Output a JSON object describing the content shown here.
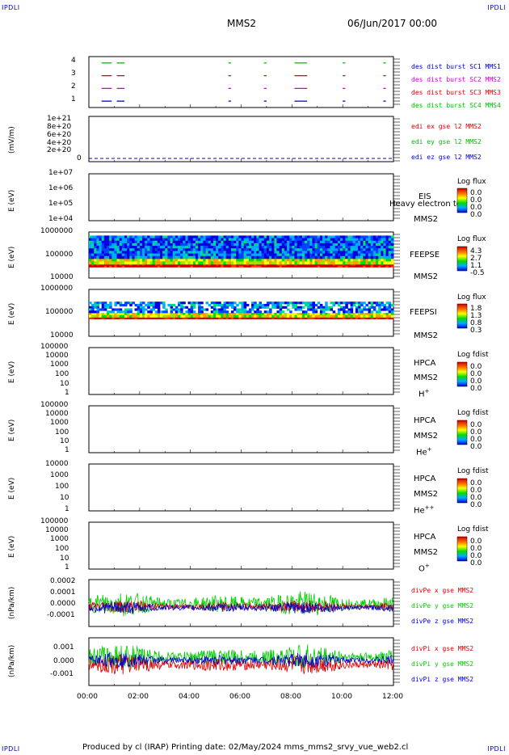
{
  "page": {
    "corner_label": "IPDLI",
    "spacecraft": "MMS2",
    "datetime": "06/Jun/2017 00:00",
    "footer": "Produced by cl (IRAP)   Printing date: 02/May/2024   mms_mms2_srvy_vue_web2.cl"
  },
  "colors": {
    "mms1": "#0000cc",
    "mms2": "#cc00cc",
    "mms3": "#dd0000",
    "mms4": "#00bb00",
    "x": "#dd0000",
    "y": "#00cc00",
    "z": "#0000cc"
  },
  "panels": {
    "burst": {
      "yticks": [
        "4",
        "3",
        "2",
        "1"
      ],
      "legend": [
        "des dist burst SC1 MMS1",
        "des dist burst SC2 MMS2",
        "des dist burst SC3 MMS3",
        "des dist burst SC4 MMS4"
      ]
    },
    "edi": {
      "ylabel": "(mV/m)",
      "yticks": [
        "1e+21",
        "8e+20",
        "6e+20",
        "4e+20",
        "2e+20",
        "0"
      ],
      "legend": [
        "edi ex gse l2 MMS2",
        "edi ey gse l2 MMS2",
        "edi ez gse l2 MMS2"
      ]
    },
    "eis": {
      "ylabel": "E (eV)",
      "yticks": [
        "1e+07",
        "1e+06",
        "1e+05",
        "1e+04"
      ],
      "instrument": "EIS",
      "instrument_extra": "Heavy electron to",
      "sc": "MMS2",
      "cb_title": "Log flux",
      "cb_values": [
        "0.0",
        "0.0",
        "0.0",
        "0.0"
      ]
    },
    "feepse": {
      "ylabel": "E (eV)",
      "yticks": [
        "1000000",
        "100000",
        "10000"
      ],
      "instrument": "FEEPSE",
      "sc": "MMS2",
      "cb_title": "Log flux",
      "cb_values": [
        "4.3",
        "2.7",
        "1.1",
        "-0.5"
      ]
    },
    "feepsi": {
      "ylabel": "E (eV)",
      "yticks": [
        "1000000",
        "100000",
        "10000"
      ],
      "instrument": "FEEPSI",
      "sc": "MMS2",
      "cb_title": "Log flux",
      "cb_values": [
        "1.8",
        "1.3",
        "0.8",
        "0.3"
      ]
    },
    "hpca_h": {
      "ylabel": "E (eV)",
      "yticks": [
        "100000",
        "10000",
        "1000",
        "100",
        "10",
        "1"
      ],
      "instrument": "HPCA",
      "sc": "MMS2",
      "species": "H",
      "charge": "+",
      "cb_title": "Log fdist",
      "cb_values": [
        "0.0",
        "0.0",
        "0.0",
        "0.0"
      ]
    },
    "hpca_he": {
      "ylabel": "E (eV)",
      "yticks": [
        "100000",
        "10000",
        "1000",
        "100",
        "10",
        "1"
      ],
      "instrument": "HPCA",
      "sc": "MMS2",
      "species": "He",
      "charge": "+",
      "cb_title": "Log fdist",
      "cb_values": [
        "0.0",
        "0.0",
        "0.0",
        "0.0"
      ]
    },
    "hpca_hepp": {
      "ylabel": "E (eV)",
      "yticks": [
        "10000",
        "1000",
        "100",
        "10",
        "1"
      ],
      "instrument": "HPCA",
      "sc": "MMS2",
      "species": "He",
      "charge": "++",
      "cb_title": "Log fdist",
      "cb_values": [
        "0.0",
        "0.0",
        "0.0",
        "0.0"
      ]
    },
    "hpca_o": {
      "ylabel": "E (eV)",
      "yticks": [
        "100000",
        "10000",
        "1000",
        "100",
        "10",
        "1"
      ],
      "instrument": "HPCA",
      "sc": "MMS2",
      "species": "O",
      "charge": "+",
      "cb_title": "Log fdist",
      "cb_values": [
        "0.0",
        "0.0",
        "0.0",
        "0.0"
      ]
    },
    "divpe": {
      "ylabel": "(nPa/km)",
      "yticks": [
        "0.0002",
        "0.0001",
        "0.0000",
        "-0.0001"
      ],
      "legend": [
        "divPe x gse MMS2",
        "divPe y gse MMS2",
        "divPe z gse MMS2"
      ]
    },
    "divpi": {
      "ylabel": "(nPa/km)",
      "yticks": [
        "0.001",
        "0.000",
        "-0.001"
      ],
      "legend": [
        "divPi x gse MMS2",
        "divPi y gse MMS2",
        "divPi z gse MMS2"
      ]
    }
  },
  "xticks": [
    "00:00",
    "02:00",
    "04:00",
    "06:00",
    "08:00",
    "10:00",
    "12:00"
  ],
  "chart_data": [
    {
      "type": "scatter",
      "name_hint": "burst",
      "x_range_hours": [
        0,
        12
      ],
      "ylim": [
        0.5,
        4.5
      ],
      "series": [
        {
          "name": "des dist burst SC1 MMS1",
          "y": 1,
          "intervals": [
            [
              0.5,
              0.9
            ],
            [
              1.1,
              1.4
            ],
            [
              5.5,
              5.6
            ],
            [
              6.9,
              7.0
            ],
            [
              8.1,
              8.6
            ],
            [
              10.0,
              10.1
            ],
            [
              11.6,
              11.7
            ]
          ]
        },
        {
          "name": "des dist burst SC2 MMS2",
          "y": 2,
          "intervals": [
            [
              0.5,
              0.9
            ],
            [
              1.1,
              1.4
            ],
            [
              5.5,
              5.6
            ],
            [
              6.9,
              7.0
            ],
            [
              8.1,
              8.6
            ],
            [
              10.0,
              10.1
            ],
            [
              11.6,
              11.7
            ]
          ]
        },
        {
          "name": "des dist burst SC3 MMS3",
          "y": 3,
          "intervals": [
            [
              0.5,
              0.9
            ],
            [
              1.1,
              1.4
            ],
            [
              5.5,
              5.6
            ],
            [
              6.9,
              7.0
            ],
            [
              8.1,
              8.6
            ],
            [
              10.0,
              10.1
            ],
            [
              11.6,
              11.7
            ]
          ]
        },
        {
          "name": "des dist burst SC4 MMS4",
          "y": 4,
          "intervals": [
            [
              0.5,
              0.9
            ],
            [
              1.1,
              1.4
            ],
            [
              5.5,
              5.6
            ],
            [
              6.9,
              7.0
            ],
            [
              8.1,
              8.6
            ],
            [
              10.0,
              10.1
            ],
            [
              11.6,
              11.7
            ]
          ]
        }
      ]
    },
    {
      "type": "line",
      "name_hint": "edi",
      "ylabel": "(mV/m)",
      "ylim": [
        0,
        1.1e+21
      ],
      "x_range_hours": [
        0,
        12
      ],
      "series": [
        {
          "name": "edi ez gse l2 MMS2",
          "x": [
            0,
            12
          ],
          "y": [
            0,
            0
          ]
        }
      ]
    },
    {
      "type": "heatmap",
      "name_hint": "feepse",
      "ylabel": "E (eV)",
      "ylog": true,
      "ylim": [
        10000,
        1000000
      ],
      "x_range_hours": [
        0,
        12
      ],
      "colorbar": [
        -0.5,
        4.3
      ],
      "bands": [
        {
          "e_low": 30000,
          "e_high": 40000,
          "level": 4.3
        },
        {
          "e_low": 40000,
          "e_high": 70000,
          "level": 2.5
        },
        {
          "e_low": 70000,
          "e_high": 700000,
          "level": 0.3
        }
      ]
    },
    {
      "type": "heatmap",
      "name_hint": "feepsi",
      "ylabel": "E (eV)",
      "ylog": true,
      "ylim": [
        10000,
        1000000
      ],
      "x_range_hours": [
        0,
        12
      ],
      "colorbar": [
        0.3,
        1.8
      ],
      "bands": [
        {
          "e_low": 55000,
          "e_high": 65000,
          "level": 1.8
        },
        {
          "e_low": 65000,
          "e_high": 100000,
          "level": 1.2
        },
        {
          "e_low": 100000,
          "e_high": 300000,
          "level": 0.6
        }
      ]
    },
    {
      "type": "line",
      "name_hint": "divpe",
      "ylabel": "(nPa/km)",
      "ylim": [
        -0.00015,
        0.0002
      ],
      "x_range_hours": [
        0,
        12
      ],
      "series": [
        {
          "name": "divPe x gse MMS2",
          "amplitude": 3e-05,
          "offset": 0.0
        },
        {
          "name": "divPe y gse MMS2",
          "amplitude": 6e-05,
          "offset": 2e-05
        },
        {
          "name": "divPe z gse MMS2",
          "amplitude": 3e-05,
          "offset": -1e-05
        }
      ]
    },
    {
      "type": "line",
      "name_hint": "divpi",
      "ylabel": "(nPa/km)",
      "ylim": [
        -0.0015,
        0.0015
      ],
      "x_range_hours": [
        0,
        12
      ],
      "series": [
        {
          "name": "divPi x gse MMS2",
          "amplitude": 0.0004,
          "offset": -0.0002
        },
        {
          "name": "divPi y gse MMS2",
          "amplitude": 0.0005,
          "offset": 0.0003
        },
        {
          "name": "divPi z gse MMS2",
          "amplitude": 0.0003,
          "offset": 0.0001
        }
      ]
    }
  ]
}
